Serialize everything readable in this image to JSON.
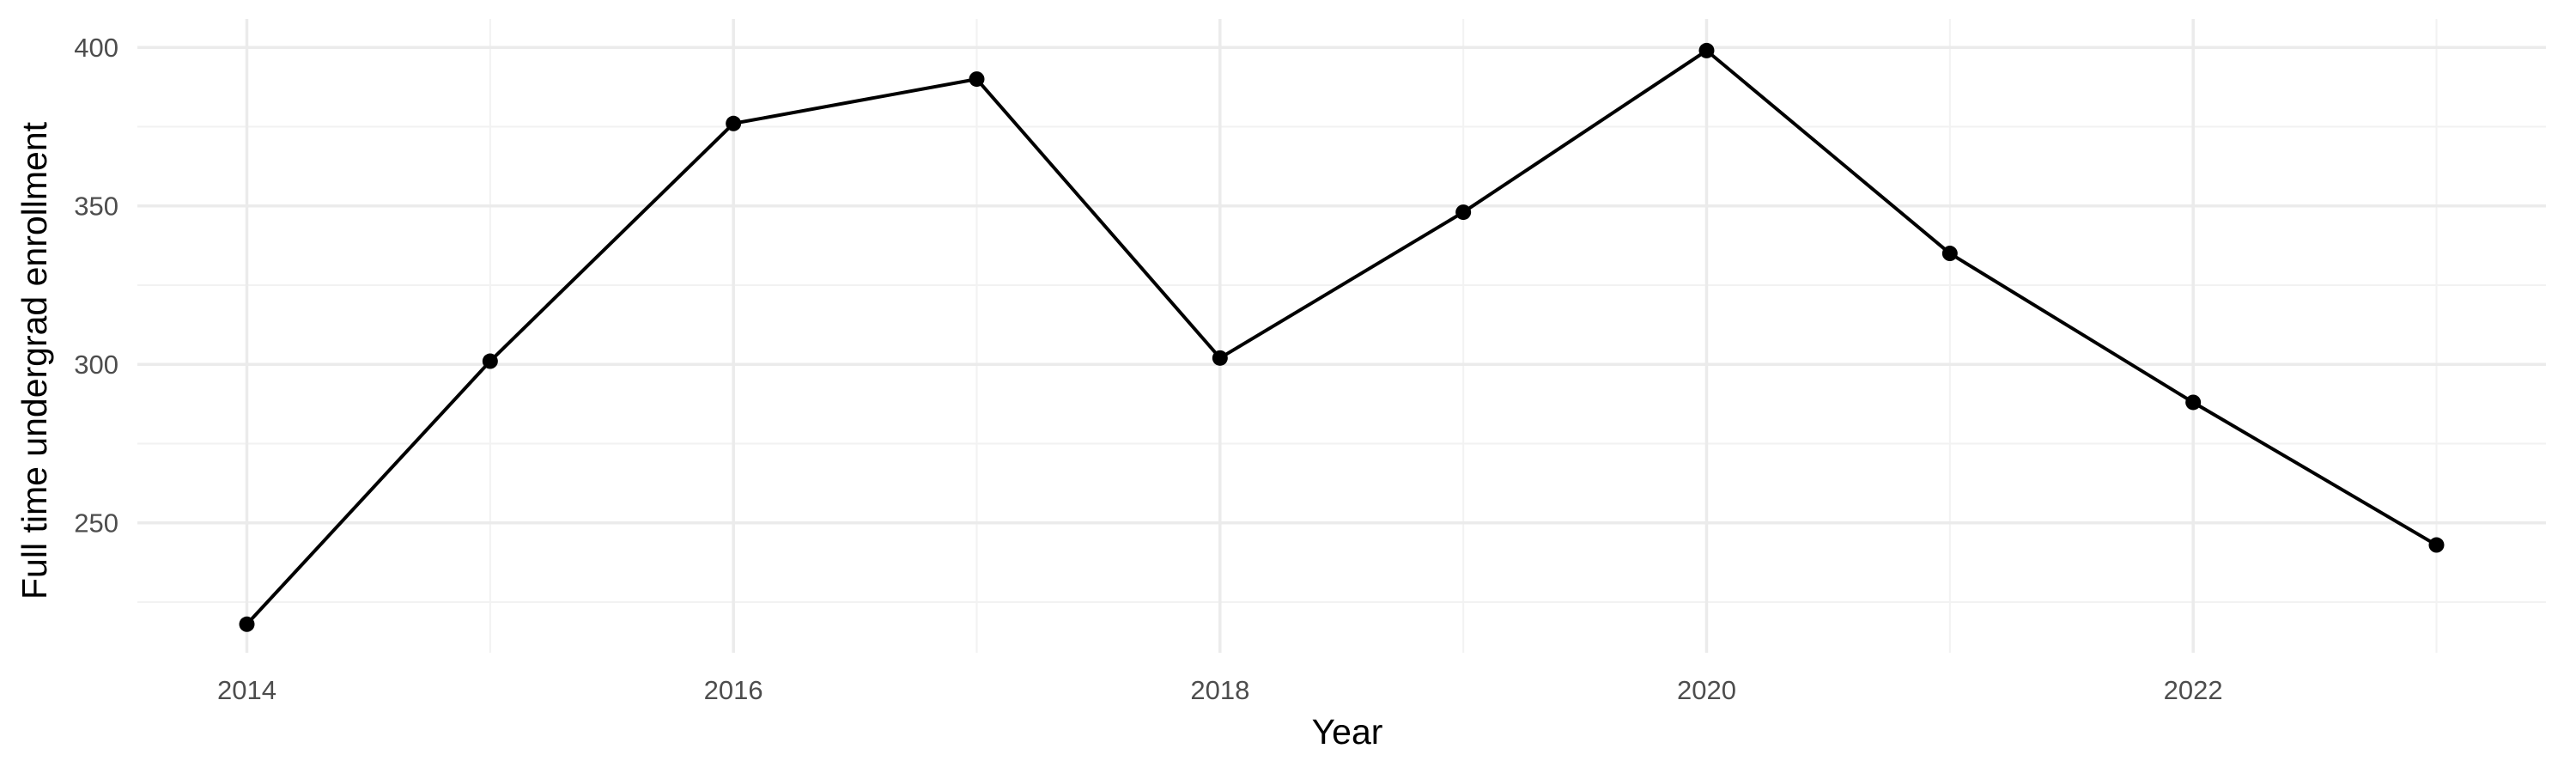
{
  "chart_data": {
    "type": "line",
    "title": "",
    "xlabel": "Year",
    "ylabel": "Full time undergrad enrollment",
    "x": [
      2014,
      2015,
      2016,
      2017,
      2018,
      2019,
      2020,
      2021,
      2022,
      2023
    ],
    "series": [
      {
        "values": [
          218,
          301,
          376,
          390,
          302,
          348,
          399,
          335,
          288,
          243
        ]
      }
    ],
    "xlim": [
      2013.55,
      2023.45
    ],
    "ylim": [
      209,
      409
    ],
    "x_ticks": [
      2014,
      2016,
      2018,
      2020,
      2022
    ],
    "x_tick_labels": [
      "2014",
      "2016",
      "2018",
      "2020",
      "2022"
    ],
    "x_minor_ticks": [
      2015,
      2017,
      2019,
      2021,
      2023
    ],
    "y_ticks": [
      250,
      300,
      350,
      400
    ],
    "y_tick_labels": [
      "250",
      "300",
      "350",
      "400"
    ],
    "y_minor_ticks": [
      225,
      275,
      325,
      375
    ],
    "grid": true,
    "legend": "none",
    "line_color": "#000000",
    "grid_color": "#ebebeb"
  }
}
